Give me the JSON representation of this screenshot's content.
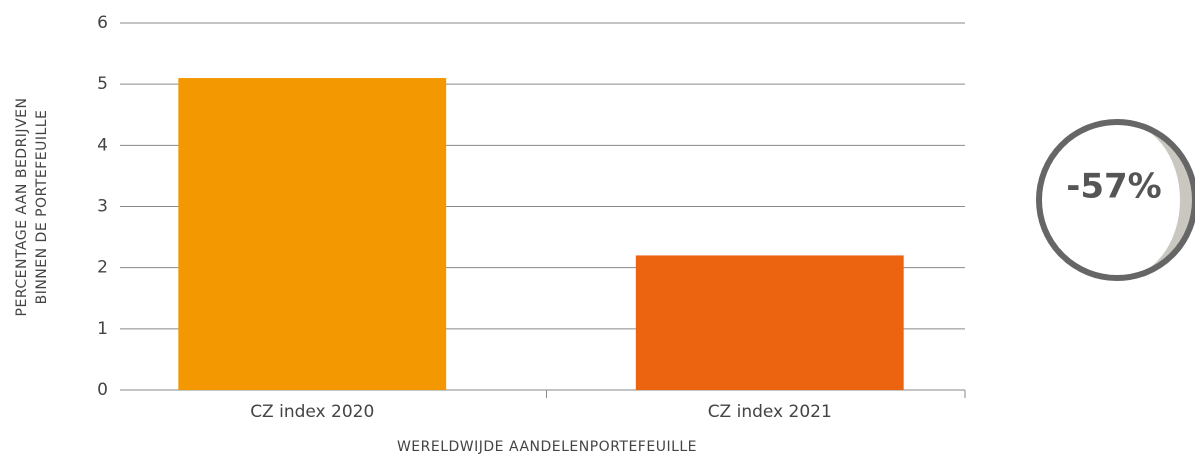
{
  "chart_data": {
    "type": "bar",
    "categories": [
      "CZ index 2020",
      "CZ index 2021"
    ],
    "values": [
      5.1,
      2.2
    ],
    "colors": [
      "#f39800",
      "#ec6310"
    ],
    "ylim": [
      0,
      6
    ],
    "yticks": [
      0,
      1,
      2,
      3,
      4,
      5,
      6
    ],
    "grid": true,
    "ylabel": [
      "PERCENTAGE AAN BEDRIJVEN",
      "BINNEN DE PORTEFEUILLE"
    ],
    "xlabel": "WERELDWIJDE AANDELENPORTEFEUILLE",
    "annotation": "-57%"
  }
}
